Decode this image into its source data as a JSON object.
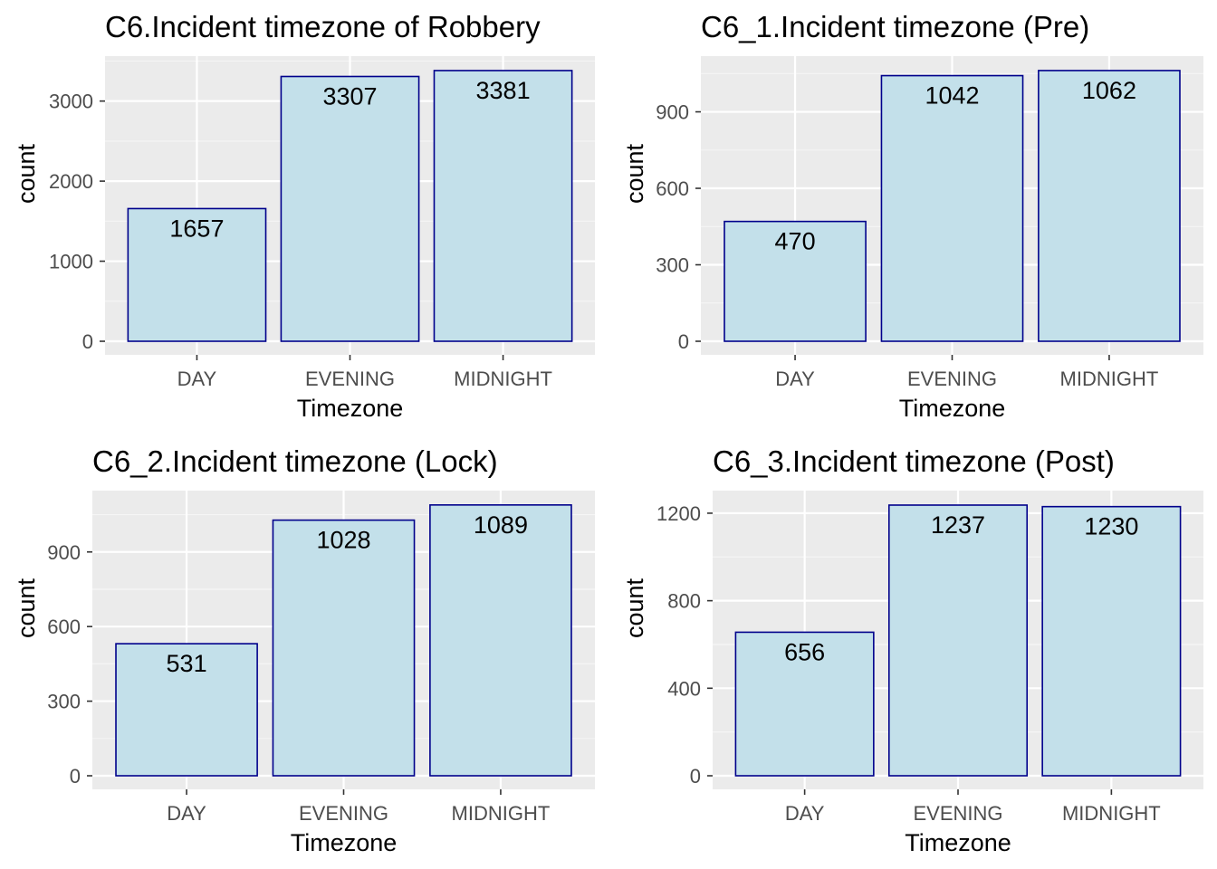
{
  "chart_data": [
    {
      "type": "bar",
      "title": "C6.Incident timezone of Robbery",
      "xlabel": "Timezone",
      "ylabel": "count",
      "categories": [
        "DAY",
        "EVENING",
        "MIDNIGHT"
      ],
      "values": [
        1657,
        3307,
        3381
      ],
      "value_labels": [
        "1657",
        "3307",
        "3381"
      ],
      "ylim": [
        0,
        3550
      ],
      "yticks": [
        0,
        1000,
        2000,
        3000
      ],
      "ytick_labels": [
        "0",
        "1000",
        "2000",
        "3000"
      ],
      "grid": true
    },
    {
      "type": "bar",
      "title": "C6_1.Incident timezone (Pre)",
      "xlabel": "Timezone",
      "ylabel": "count",
      "categories": [
        "DAY",
        "EVENING",
        "MIDNIGHT"
      ],
      "values": [
        470,
        1042,
        1062
      ],
      "value_labels": [
        "470",
        "1042",
        "1062"
      ],
      "ylim": [
        0,
        1115
      ],
      "yticks": [
        0,
        300,
        600,
        900
      ],
      "ytick_labels": [
        "0",
        "300",
        "600",
        "900"
      ],
      "grid": true
    },
    {
      "type": "bar",
      "title": "C6_2.Incident timezone (Lock)",
      "xlabel": "Timezone",
      "ylabel": "count",
      "categories": [
        "DAY",
        "EVENING",
        "MIDNIGHT"
      ],
      "values": [
        531,
        1028,
        1089
      ],
      "value_labels": [
        "531",
        "1028",
        "1089"
      ],
      "ylim": [
        0,
        1143
      ],
      "yticks": [
        0,
        300,
        600,
        900
      ],
      "ytick_labels": [
        "0",
        "300",
        "600",
        "900"
      ],
      "grid": true
    },
    {
      "type": "bar",
      "title": "C6_3.Incident timezone (Post)",
      "xlabel": "Timezone",
      "ylabel": "count",
      "categories": [
        "DAY",
        "EVENING",
        "MIDNIGHT"
      ],
      "values": [
        656,
        1237,
        1230
      ],
      "value_labels": [
        "656",
        "1237",
        "1230"
      ],
      "ylim": [
        0,
        1299
      ],
      "yticks": [
        0,
        400,
        800,
        1200
      ],
      "ytick_labels": [
        "0",
        "400",
        "800",
        "1200"
      ],
      "grid": true
    }
  ],
  "colors": {
    "panel_background": "#ebebeb",
    "grid_major": "#ffffff",
    "grid_minor": "#f5f5f5",
    "bar_fill": "#c3e0ea",
    "bar_outline": "#00008b",
    "tick_text": "#4d4d4d",
    "tick_mark": "#333333"
  }
}
